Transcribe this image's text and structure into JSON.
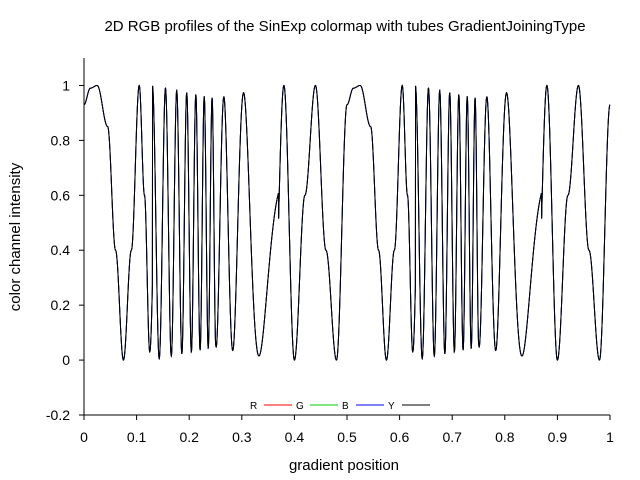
{
  "chart_data": {
    "type": "line",
    "title": "2D RGB profiles of the SinExp colormap with tubes GradientJoiningType",
    "xlabel": "gradient position",
    "ylabel": "color channel intensity",
    "xlim": [
      0,
      1
    ],
    "ylim": [
      -0.2,
      1.1
    ],
    "xticks": [
      "0",
      "0.1",
      "0.2",
      "0.3",
      "0.4",
      "0.5",
      "0.6",
      "0.7",
      "0.8",
      "0.9",
      "1"
    ],
    "yticks": [
      "-0.2",
      "0",
      "0.2",
      "0.4",
      "0.6",
      "0.8",
      "1"
    ],
    "grid": false,
    "legend_position": "bottom-center",
    "series": [
      {
        "name": "R",
        "color": "#ff0000"
      },
      {
        "name": "G",
        "color": "#00cc00"
      },
      {
        "name": "B",
        "color": "#0000ff"
      },
      {
        "name": "Y",
        "color": "#000000"
      }
    ],
    "curve": {
      "description_of_values": "intensity profile repeated twice over [0,0.5] and [0.5,1]; all channels overlap, drawn in black",
      "segment_points_x": [
        0.0,
        0.012,
        0.025,
        0.045,
        0.06,
        0.075,
        0.09,
        0.105,
        0.115,
        0.125,
        0.14,
        0.16,
        0.18,
        0.2,
        0.22,
        0.24,
        0.26,
        0.28,
        0.3,
        0.32,
        0.34,
        0.36,
        0.38,
        0.4,
        0.42,
        0.44,
        0.46,
        0.48,
        0.5
      ],
      "segment_points_y": [
        0.93,
        0.99,
        1.0,
        0.85,
        0.4,
        0.0,
        0.4,
        1.0,
        0.6,
        0.03,
        1.0,
        0.0,
        1.0,
        0.0,
        1.0,
        0.0,
        1.0,
        0.0,
        1.0,
        0.0,
        1.0,
        0.03,
        1.0,
        0.0,
        0.6,
        1.0,
        0.4,
        0.0,
        0.93
      ]
    }
  }
}
